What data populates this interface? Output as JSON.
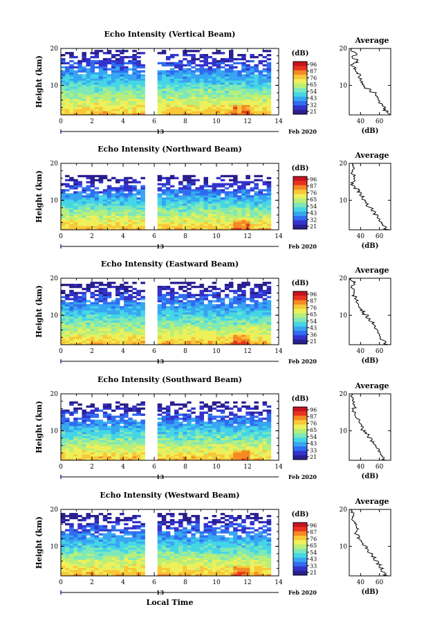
{
  "colors": {
    "colormap": [
      "#2a1f8f",
      "#3333cc",
      "#2f6df0",
      "#37a6f2",
      "#45d6e6",
      "#7fe8b8",
      "#b8ef7a",
      "#eef05a",
      "#f8c838",
      "#f58a25",
      "#e8321f",
      "#c8141e"
    ],
    "line": "#000000",
    "gap": "#ffffff"
  },
  "chart_data": [
    {
      "type": "heatmap",
      "title": "Echo Intensity (Vertical Beam)",
      "ylabel": "Height (km)",
      "xlabel": "",
      "x_ticks": [
        "0",
        "2",
        "4",
        "6",
        "8",
        "10",
        "12",
        "14"
      ],
      "y_ticks": [
        "20",
        "10"
      ],
      "xlim": [
        0,
        14
      ],
      "ylim": [
        2,
        20
      ],
      "data_gap_hours": [
        5.5,
        6.1
      ],
      "x_data_end_hours": 13.4,
      "echo_top_km": 19,
      "date_day": "13",
      "date_month_year": "Feb 2020",
      "colorbar": {
        "unit": "(dB)",
        "labels": [
          "96",
          "87",
          "76",
          "65",
          "54",
          "43",
          "32",
          "21"
        ]
      },
      "profile": {
        "title": "Average",
        "xlabel": "(dB)",
        "x_ticks": [
          "40",
          "60"
        ],
        "y_ticks": [
          "20",
          "10"
        ],
        "xlim": [
          28,
          72
        ],
        "ylim": [
          2,
          20
        ],
        "heights_km": [
          20,
          19,
          18,
          17,
          16,
          15,
          14,
          13,
          12,
          11,
          10,
          9,
          8,
          7,
          6,
          5,
          4,
          3,
          2
        ],
        "values_db": [
          30,
          35,
          32,
          36,
          31,
          34,
          35,
          39,
          40,
          42,
          44,
          51,
          56,
          58,
          60,
          64,
          65,
          69,
          70
        ]
      }
    },
    {
      "type": "heatmap",
      "title": "Echo Intensity (Northward Beam)",
      "ylabel": "Height (km)",
      "xlabel": "",
      "x_ticks": [
        "0",
        "2",
        "4",
        "6",
        "8",
        "10",
        "12",
        "14"
      ],
      "y_ticks": [
        "20",
        "10"
      ],
      "xlim": [
        0,
        14
      ],
      "ylim": [
        2,
        20
      ],
      "data_gap_hours": [
        5.5,
        6.1
      ],
      "x_data_end_hours": 13.4,
      "echo_top_km": 16,
      "date_day": "13",
      "date_month_year": "Feb 2020",
      "colorbar": {
        "unit": "(dB)",
        "labels": [
          "96",
          "87",
          "76",
          "65",
          "54",
          "43",
          "32",
          "21"
        ]
      },
      "profile": {
        "title": "Average",
        "xlabel": "(dB)",
        "x_ticks": [
          "40",
          "60"
        ],
        "y_ticks": [
          "20",
          "10"
        ],
        "xlim": [
          28,
          72
        ],
        "ylim": [
          2,
          20
        ],
        "heights_km": [
          20,
          19,
          18,
          17,
          16,
          15,
          14,
          13,
          12,
          11,
          10,
          9,
          8,
          7,
          6,
          5,
          4,
          3,
          2
        ],
        "values_db": [
          31,
          32,
          31,
          33,
          34,
          31,
          33,
          38,
          40,
          43,
          45,
          47,
          52,
          55,
          57,
          60,
          63,
          66,
          70
        ]
      }
    },
    {
      "type": "heatmap",
      "title": "Echo Intensity (Eastward Beam)",
      "ylabel": "Height (km)",
      "xlabel": "",
      "x_ticks": [
        "0",
        "2",
        "4",
        "6",
        "8",
        "10",
        "12",
        "14"
      ],
      "y_ticks": [
        "20",
        "10"
      ],
      "xlim": [
        0,
        14
      ],
      "ylim": [
        2,
        20
      ],
      "data_gap_hours": [
        5.5,
        6.1
      ],
      "x_data_end_hours": 13.4,
      "echo_top_km": 18,
      "date_day": "13",
      "date_month_year": "Feb 2020",
      "colorbar": {
        "unit": "(dB)",
        "labels": [
          "96",
          "87",
          "76",
          "65",
          "54",
          "43",
          "36",
          "21"
        ]
      },
      "profile": {
        "title": "Average",
        "xlabel": "(dB)",
        "x_ticks": [
          "40",
          "60"
        ],
        "y_ticks": [
          "20",
          "10"
        ],
        "xlim": [
          28,
          72
        ],
        "ylim": [
          2,
          20
        ],
        "heights_km": [
          20,
          19,
          18,
          17,
          16,
          15,
          14,
          13,
          12,
          11,
          10,
          9,
          8,
          7,
          6,
          5,
          4,
          3,
          2
        ],
        "values_db": [
          30,
          33,
          31,
          34,
          32,
          35,
          36,
          38,
          40,
          43,
          47,
          50,
          53,
          56,
          58,
          60,
          62,
          66,
          70
        ]
      }
    },
    {
      "type": "heatmap",
      "title": "Echo Intensity (Southward Beam)",
      "ylabel": "Height (km)",
      "xlabel": "",
      "x_ticks": [
        "0",
        "2",
        "4",
        "6",
        "8",
        "10",
        "12",
        "14"
      ],
      "y_ticks": [
        "20",
        "10"
      ],
      "xlim": [
        0,
        14
      ],
      "ylim": [
        2,
        20
      ],
      "data_gap_hours": [
        5.5,
        6.1
      ],
      "x_data_end_hours": 13.4,
      "echo_top_km": 17,
      "date_day": "13",
      "date_month_year": "Feb 2020",
      "colorbar": {
        "unit": "(dB)",
        "labels": [
          "96",
          "87",
          "76",
          "65",
          "54",
          "43",
          "33",
          "21"
        ]
      },
      "profile": {
        "title": "Average",
        "xlabel": "(dB)",
        "x_ticks": [
          "40",
          "60"
        ],
        "y_ticks": [
          "20",
          "10"
        ],
        "xlim": [
          28,
          72
        ],
        "ylim": [
          2,
          20
        ],
        "heights_km": [
          20,
          19,
          18,
          17,
          16,
          15,
          14,
          13,
          12,
          11,
          10,
          9,
          8,
          7,
          6,
          5,
          4,
          3,
          2
        ],
        "values_db": [
          31,
          31,
          33,
          34,
          32,
          35,
          36,
          38,
          40,
          42,
          45,
          48,
          51,
          54,
          57,
          60,
          62,
          64,
          66
        ]
      }
    },
    {
      "type": "heatmap",
      "title": "Echo Intensity (Westward Beam)",
      "ylabel": "Height (km)",
      "xlabel": "Local Time",
      "x_ticks": [
        "0",
        "2",
        "4",
        "6",
        "8",
        "10",
        "12",
        "14"
      ],
      "y_ticks": [
        "20",
        "10"
      ],
      "xlim": [
        0,
        14
      ],
      "ylim": [
        2,
        20
      ],
      "data_gap_hours": [
        5.5,
        6.1
      ],
      "x_data_end_hours": 13.4,
      "echo_top_km": 18,
      "date_day": "13",
      "date_month_year": "Feb 2020",
      "colorbar": {
        "unit": "(dB)",
        "labels": [
          "96",
          "87",
          "76",
          "65",
          "54",
          "43",
          "33",
          "21"
        ]
      },
      "profile": {
        "title": "Average",
        "xlabel": "(dB)",
        "x_ticks": [
          "40",
          "60"
        ],
        "y_ticks": [
          "20",
          "10"
        ],
        "xlim": [
          28,
          72
        ],
        "ylim": [
          2,
          20
        ],
        "heights_km": [
          20,
          19,
          18,
          17,
          16,
          15,
          14,
          13,
          12,
          11,
          10,
          9,
          8,
          7,
          6,
          5,
          4,
          3,
          2
        ],
        "values_db": [
          30,
          32,
          31,
          33,
          35,
          37,
          35,
          38,
          40,
          43,
          46,
          48,
          52,
          55,
          58,
          61,
          63,
          66,
          70
        ]
      }
    }
  ]
}
